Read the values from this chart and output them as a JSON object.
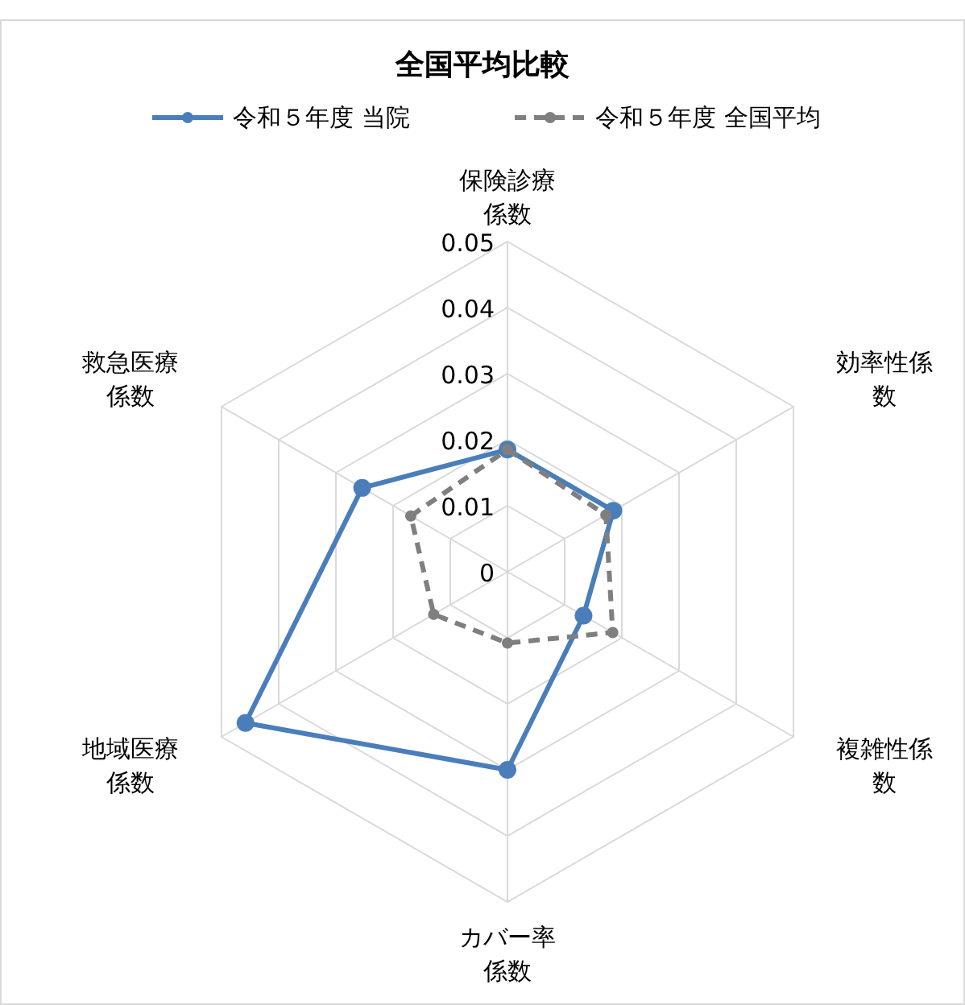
{
  "chart_data": {
    "type": "radar",
    "title": "全国平均比較",
    "categories": [
      "保険診療係数",
      "効率性係数",
      "複雑性係数",
      "カバー率係数",
      "地域医療係数",
      "救急医療係数"
    ],
    "series": [
      {
        "name": "令和５年度 当院",
        "color": "#4a7ebb",
        "line_style": "solid",
        "values": [
          0.0185,
          0.0185,
          0.0133,
          0.03,
          0.0458,
          0.0254
        ]
      },
      {
        "name": "令和５年度 全国平均",
        "color": "#7f7f7f",
        "line_style": "dashed",
        "values": [
          0.0185,
          0.0172,
          0.0184,
          0.0108,
          0.0129,
          0.0169
        ]
      }
    ],
    "ylim": [
      0,
      0.05
    ],
    "yticks": [
      0,
      0.01,
      0.02,
      0.03,
      0.04,
      0.05
    ],
    "grid": true,
    "legend": "top",
    "marker": "circle"
  }
}
